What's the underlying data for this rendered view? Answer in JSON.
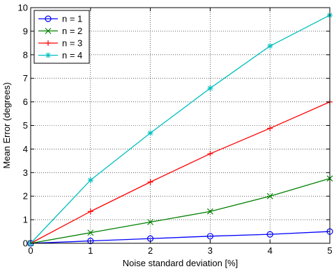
{
  "chart_data": {
    "type": "line",
    "xlabel": "Noise standard deviation [%]",
    "ylabel": "Mean Error (degrees)",
    "xlim": [
      0,
      5
    ],
    "ylim": [
      0,
      10
    ],
    "xticks": [
      0,
      1,
      2,
      3,
      4,
      5
    ],
    "yticks": [
      0,
      1,
      2,
      3,
      4,
      5,
      6,
      7,
      8,
      9,
      10
    ],
    "grid": true,
    "grid_style": "dotted",
    "legend_position": "top-left",
    "x": [
      0,
      1,
      2,
      3,
      4,
      5
    ],
    "series": [
      {
        "name": "n = 1",
        "color": "#0000ff",
        "marker": "circle",
        "values": [
          0,
          0.1,
          0.2,
          0.3,
          0.38,
          0.5
        ]
      },
      {
        "name": "n = 2",
        "color": "#008000",
        "marker": "x",
        "values": [
          0,
          0.45,
          0.9,
          1.35,
          2.0,
          2.75
        ]
      },
      {
        "name": "n = 3",
        "color": "#ff0000",
        "marker": "plus",
        "values": [
          0,
          1.35,
          2.6,
          3.8,
          4.88,
          6.0
        ]
      },
      {
        "name": "n = 4",
        "color": "#00bfbf",
        "marker": "star",
        "values": [
          0,
          2.68,
          4.68,
          6.58,
          8.37,
          9.68
        ]
      }
    ]
  }
}
